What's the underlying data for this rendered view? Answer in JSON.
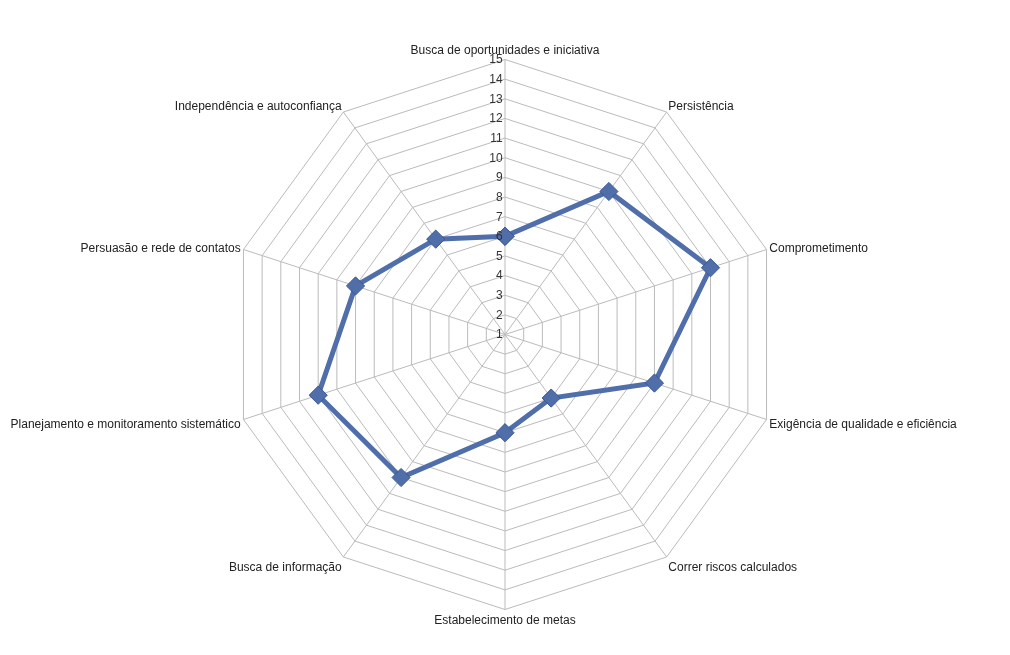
{
  "chart_data": {
    "type": "radar",
    "categories": [
      "Busca de oportunidades e iniciativa",
      "Persistência",
      "Comprometimento",
      "Exigência de qualidade e eficiência",
      "Correr riscos calculados",
      "Estabelecimento de metas",
      "Busca de informação",
      "Planejamento e monitoramento sistemático",
      "Persuasão e rede de contatos",
      "Independência e autoconfiança"
    ],
    "series": [
      {
        "color": "#4f6eaa",
        "values": [
          6,
          10,
          12,
          9,
          5,
          6,
          10,
          11,
          9,
          7
        ]
      }
    ],
    "ylim": [
      1,
      15
    ],
    "yticks": [
      1,
      2,
      3,
      4,
      5,
      6,
      7,
      8,
      9,
      10,
      11,
      12,
      13,
      14,
      15
    ],
    "grid": true,
    "marker": "diamond",
    "line_style": "solid"
  }
}
